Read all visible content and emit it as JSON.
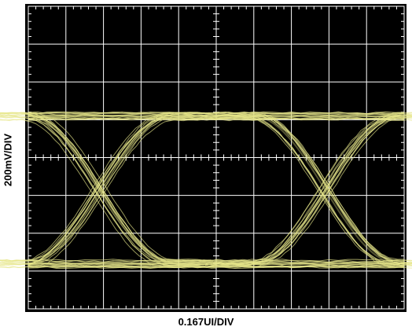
{
  "chart_data": {
    "type": "eye-diagram",
    "xlabel": "0.167UI/DIV",
    "ylabel": "200mV/DIV",
    "grid": true,
    "x_divisions": 10,
    "y_divisions": 8,
    "xlim": [
      0,
      10
    ],
    "ylim": [
      0,
      8
    ],
    "high_level_div": 5.1,
    "low_level_div": 1.2,
    "crossings_div": [
      1.9,
      7.9
    ],
    "unit_interval_div": 6.0,
    "colors": {
      "screen": "#000000",
      "grid": "#ffffff",
      "trace": "#e6e68a"
    }
  }
}
